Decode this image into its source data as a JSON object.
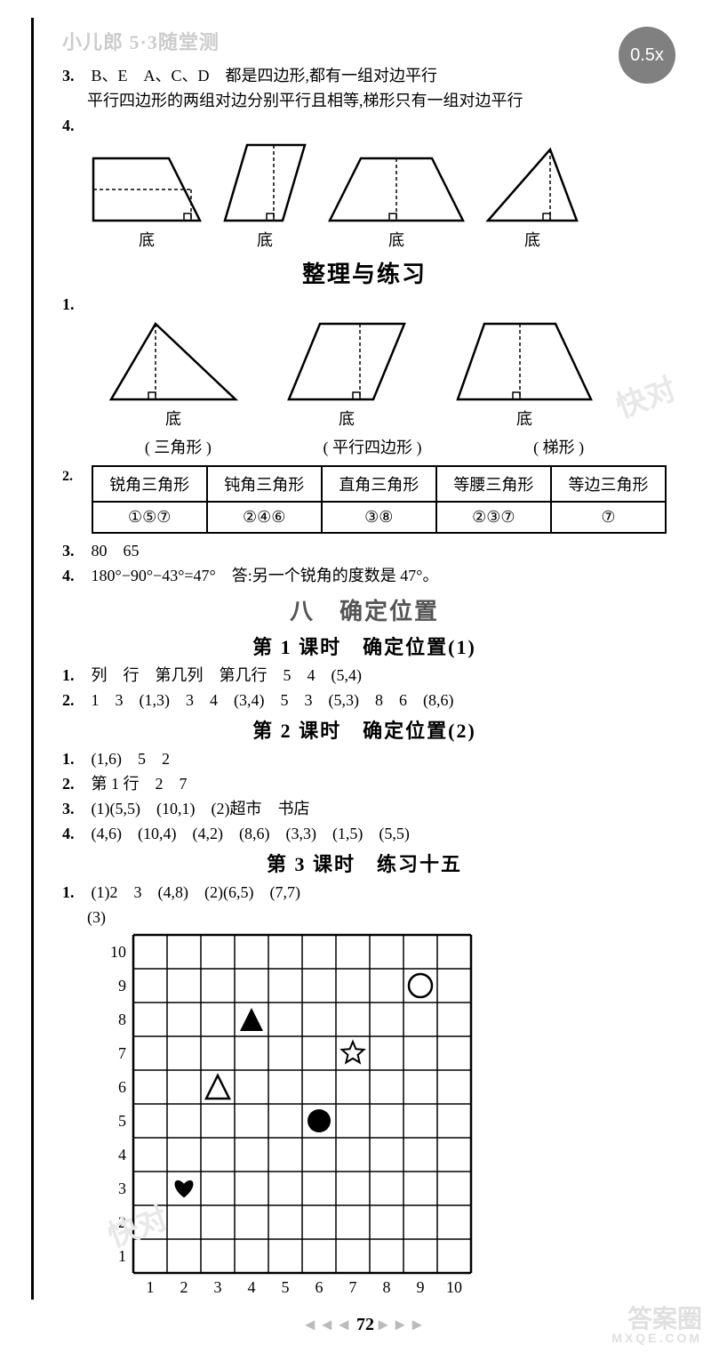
{
  "header": {
    "brand": "小儿郎",
    "series": "5·3随堂测"
  },
  "zoom": {
    "label": "0.5x"
  },
  "q3": {
    "num": "3.",
    "text1": "B、E　A、C、D　都是四边形,都有一组对边平行",
    "text2": "平行四边形的两组对边分别平行且相等,梯形只有一组对边平行"
  },
  "q4": {
    "num": "4.",
    "labels": [
      "底",
      "底",
      "底",
      "底"
    ]
  },
  "section_review": {
    "title": "整理与练习"
  },
  "r1": {
    "num": "1.",
    "labels": [
      "底",
      "底",
      "底"
    ],
    "names": [
      "( 三角形 )",
      "( 平行四边形 )",
      "( 梯形 )"
    ]
  },
  "r2": {
    "num": "2.",
    "headers": [
      "锐角三角形",
      "钝角三角形",
      "直角三角形",
      "等腰三角形",
      "等边三角形"
    ],
    "cells": [
      "①⑤⑦",
      "②④⑥",
      "③⑧",
      "②③⑦",
      "⑦"
    ]
  },
  "r3": {
    "num": "3.",
    "text": "80　65"
  },
  "r4": {
    "num": "4.",
    "text": "180°−90°−43°=47°　答:另一个锐角的度数是 47°。"
  },
  "unit8": {
    "title": "八　确定位置"
  },
  "lesson1": {
    "title": "第 1 课时　确定位置(1)",
    "l1_num": "1.",
    "l1": "列　行　第几列　第几行　5　4　(5,4)",
    "l2_num": "2.",
    "l2": "1　3　(1,3)　3　4　(3,4)　5　3　(5,3)　8　6　(8,6)"
  },
  "lesson2": {
    "title": "第 2 课时　确定位置(2)",
    "l1_num": "1.",
    "l1": "(1,6)　5　2",
    "l2_num": "2.",
    "l2": "第 1 行　2　7",
    "l3_num": "3.",
    "l3": "(1)(5,5)　(10,1)　(2)超市　书店",
    "l4_num": "4.",
    "l4": "(4,6)　(10,4)　(4,2)　(8,6)　(3,3)　(1,5)　(5,5)"
  },
  "lesson3": {
    "title": "第 3 课时　练习十五",
    "l1_num": "1.",
    "l1a": "(1)2　3　(4,8)　(2)(6,5)　(7,7)",
    "l1b": "(3)"
  },
  "grid": {
    "size": 10,
    "cell": 38,
    "y_labels": [
      "10",
      "9",
      "8",
      "7",
      "6",
      "5",
      "4",
      "3",
      "2",
      "1"
    ],
    "x_labels": [
      "1",
      "2",
      "3",
      "4",
      "5",
      "6",
      "7",
      "8",
      "9",
      "10"
    ],
    "markers": [
      {
        "shape": "heart-filled",
        "x": 2,
        "y": 3
      },
      {
        "shape": "triangle-outline",
        "x": 3,
        "y": 6
      },
      {
        "shape": "triangle-filled",
        "x": 4,
        "y": 8
      },
      {
        "shape": "circle-filled",
        "x": 6,
        "y": 5
      },
      {
        "shape": "star-outline",
        "x": 7,
        "y": 7
      },
      {
        "shape": "circle-outline",
        "x": 9,
        "y": 9
      }
    ]
  },
  "page_number": "72",
  "footer": {
    "big": "答案圈",
    "sub": "MXQE.COM"
  }
}
